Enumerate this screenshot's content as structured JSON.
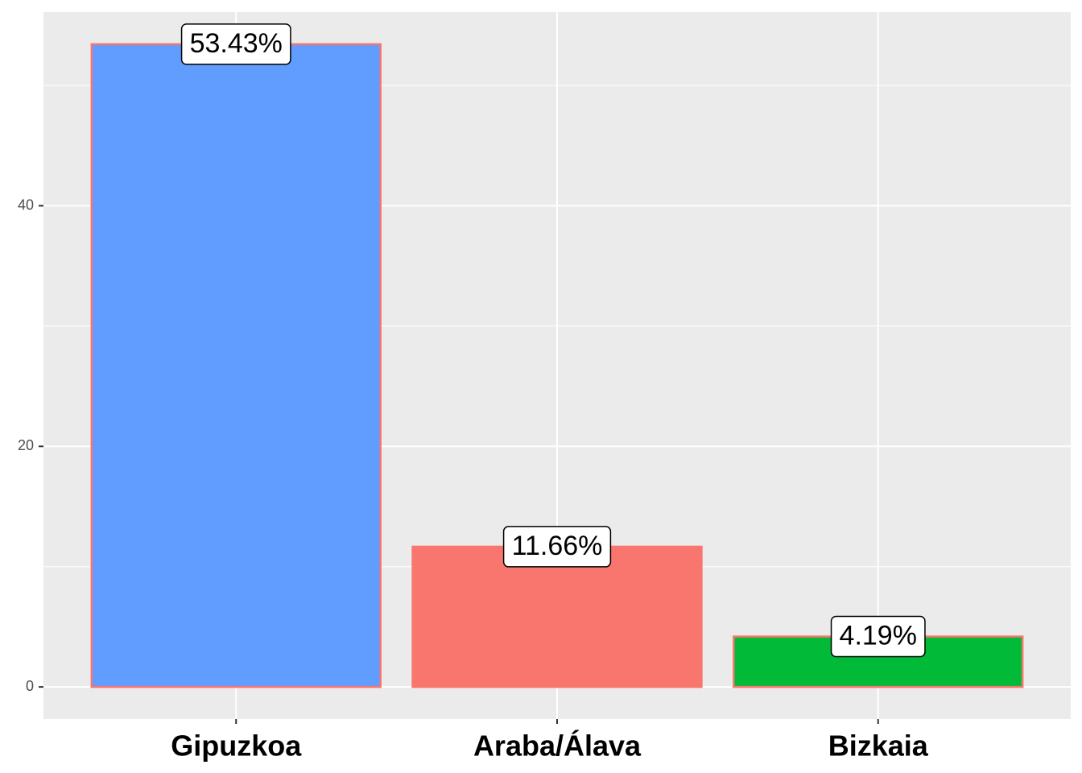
{
  "chart_data": {
    "type": "bar",
    "categories": [
      "Gipuzkoa",
      "Araba/Álava",
      "Bizkaia"
    ],
    "values": [
      53.43,
      11.66,
      4.19
    ],
    "value_labels": [
      "53.43%",
      "11.66%",
      "4.19%"
    ],
    "colors": [
      "#619CFF",
      "#F8766D",
      "#00BA38"
    ],
    "edgecolor": "#F8766D",
    "ylim": [
      -2.67,
      56.1
    ],
    "yticks": [
      0,
      20,
      40
    ],
    "minor_yticks": [
      10,
      30,
      50
    ],
    "grid": true
  }
}
